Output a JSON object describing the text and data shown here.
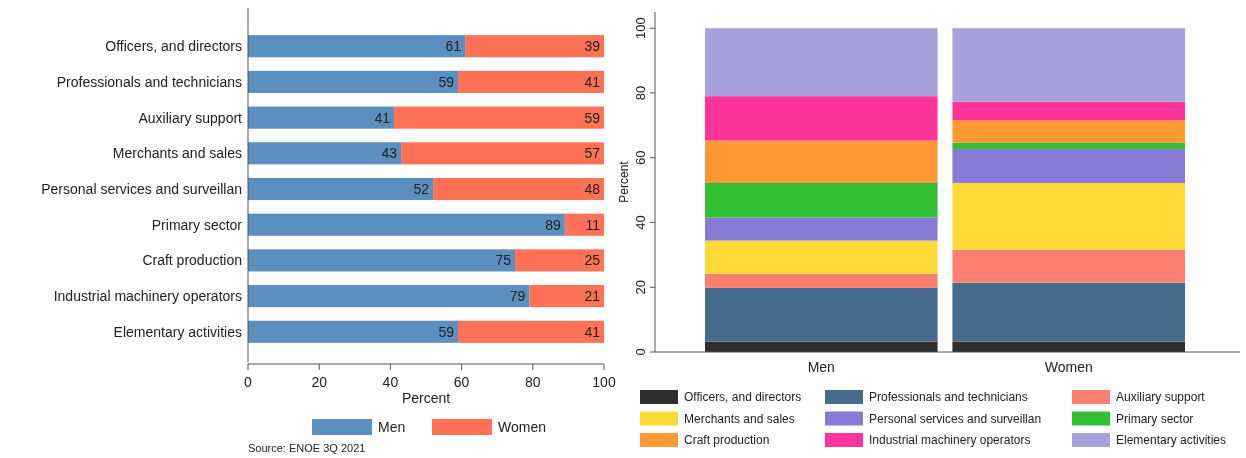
{
  "chart_data": [
    {
      "type": "bar",
      "orientation": "horizontal",
      "stacked": true,
      "xlabel": "Percent",
      "categories": [
        "Officers, and directors",
        "Professionals and technicians",
        "Auxiliary support",
        "Merchants and sales",
        "Personal services and surveillan",
        "Primary sector",
        "Craft production",
        "Industrial machinery operators",
        "Elementary activities"
      ],
      "series": [
        {
          "name": "Men",
          "color": "#5b8fbf",
          "values": [
            61,
            59,
            41,
            43,
            52,
            89,
            75,
            79,
            59
          ]
        },
        {
          "name": "Women",
          "color": "#ff7256",
          "values": [
            39,
            41,
            59,
            57,
            48,
            11,
            25,
            21,
            41
          ]
        }
      ],
      "xlim": [
        0,
        100
      ],
      "xticks": [
        0,
        20,
        40,
        60,
        80,
        100
      ],
      "data_labels": true,
      "legend": "bottom",
      "annotations": [
        "Source: ENOE 3Q 2021"
      ]
    },
    {
      "type": "bar",
      "stacked": true,
      "ylabel": "Percent",
      "categories": [
        "Men",
        "Women"
      ],
      "series": [
        {
          "name": "Officers, and directors",
          "color": "#2e2e2e",
          "values": [
            3.2,
            3.2
          ]
        },
        {
          "name": "Professionals and technicians",
          "color": "#476b8c",
          "values": [
            16.6,
            18.2
          ]
        },
        {
          "name": "Auxiliary support",
          "color": "#ff8070",
          "values": [
            4.4,
            10.2
          ]
        },
        {
          "name": "Merchants and sales",
          "color": "#ffd935",
          "values": [
            10.2,
            20.6
          ]
        },
        {
          "name": "Personal services and surveillan",
          "color": "#887bd6",
          "values": [
            7.1,
            10.5
          ]
        },
        {
          "name": "Primary sector",
          "color": "#33bf33",
          "values": [
            10.7,
            1.9
          ]
        },
        {
          "name": "Craft production",
          "color": "#ff9933",
          "values": [
            13.1,
            7.0
          ]
        },
        {
          "name": "Industrial machinery operators",
          "color": "#ff3399",
          "values": [
            13.7,
            5.7
          ]
        },
        {
          "name": "Elementary activities",
          "color": "#a8a2dc",
          "values": [
            21.0,
            22.7
          ]
        }
      ],
      "ylim": [
        0,
        105
      ],
      "yticks": [
        0,
        20,
        40,
        60,
        80,
        100
      ],
      "legend": "bottom"
    }
  ]
}
